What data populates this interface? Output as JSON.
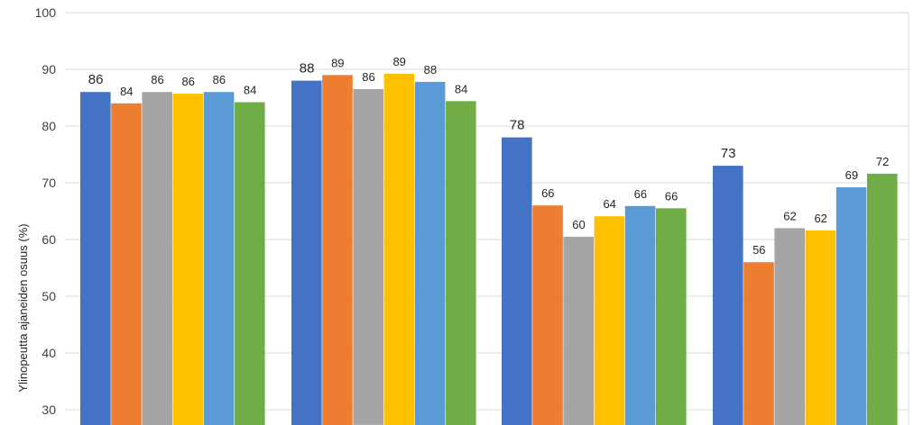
{
  "chart_data": {
    "type": "bar",
    "ylabel": "Ylinopeutta ajaneiden osuus (%)",
    "ylim": [
      30,
      100
    ],
    "yticks": [
      30,
      40,
      50,
      60,
      70,
      80,
      90,
      100
    ],
    "grid": true,
    "groups": 4,
    "series": [
      {
        "color": "#4472C4",
        "values": [
          86,
          88,
          78,
          73
        ],
        "labels": [
          "86",
          "88",
          "78",
          "73"
        ]
      },
      {
        "color": "#ED7D31",
        "values": [
          84,
          89,
          66,
          56
        ],
        "labels": [
          "84",
          "89",
          "66",
          "56"
        ]
      },
      {
        "color": "#A5A5A5",
        "values": [
          86,
          86.5,
          60.5,
          62
        ],
        "labels": [
          "86",
          "86",
          "60",
          "62"
        ]
      },
      {
        "color": "#FFC000",
        "values": [
          85.7,
          89.2,
          64.1,
          61.6
        ],
        "labels": [
          "86",
          "89",
          "64",
          "62"
        ]
      },
      {
        "color": "#5B9BD5",
        "values": [
          86,
          87.8,
          65.9,
          69.2
        ],
        "labels": [
          "86",
          "88",
          "66",
          "69"
        ]
      },
      {
        "color": "#70AD47",
        "values": [
          84.2,
          84.4,
          65.5,
          71.6
        ],
        "labels": [
          "84",
          "84",
          "66",
          "72"
        ]
      }
    ]
  }
}
